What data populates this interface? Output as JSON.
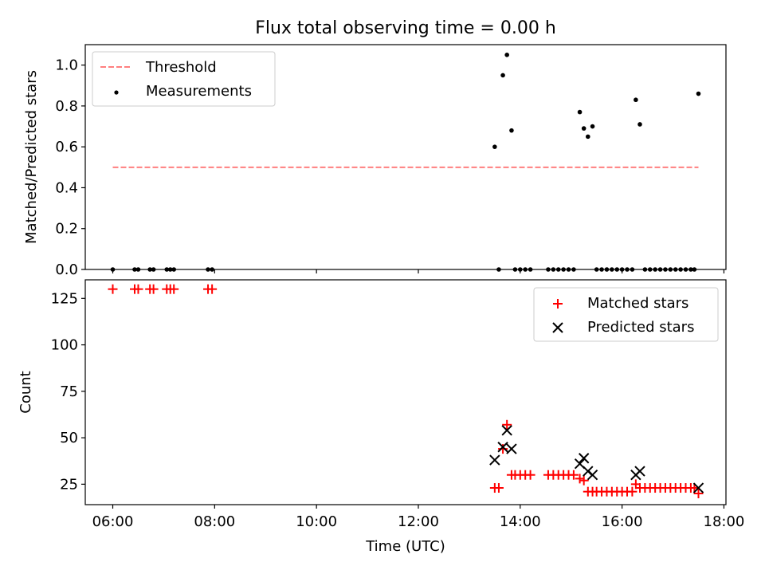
{
  "chart_data": [
    {
      "type": "scatter",
      "title": "Flux total observing time = 0.00 h",
      "xlabel": "",
      "ylabel": "Matched/Predicted stars",
      "xlim": [
        5.46,
        18.04
      ],
      "ylim": [
        0,
        1.1
      ],
      "x_ticks": [
        6,
        8,
        10,
        12,
        14,
        16,
        18
      ],
      "y_ticks": [
        {
          "value": 0.0,
          "label": "0.0"
        },
        {
          "value": 0.2,
          "label": "0.2"
        },
        {
          "value": 0.4,
          "label": "0.4"
        },
        {
          "value": 0.6,
          "label": "0.6"
        },
        {
          "value": 0.8,
          "label": "0.8"
        },
        {
          "value": 1.0,
          "label": "1.0"
        }
      ],
      "legend_position": "upper-left",
      "series": [
        {
          "name": "Threshold",
          "kind": "line",
          "style": "dashed",
          "color": "#ff7f7f",
          "x": [
            6.0,
            17.5
          ],
          "y": [
            0.5,
            0.5
          ]
        },
        {
          "name": "Measurements",
          "kind": "scatter",
          "marker": "dot",
          "color": "#000000",
          "points": [
            [
              6.0,
              0
            ],
            [
              6.43,
              0
            ],
            [
              6.5,
              0
            ],
            [
              6.73,
              0
            ],
            [
              6.8,
              0
            ],
            [
              7.06,
              0
            ],
            [
              7.13,
              0
            ],
            [
              7.2,
              0
            ],
            [
              7.87,
              0
            ],
            [
              7.95,
              0
            ],
            [
              13.5,
              0.6
            ],
            [
              13.58,
              0
            ],
            [
              13.66,
              0.95
            ],
            [
              13.74,
              1.05
            ],
            [
              13.83,
              0.68
            ],
            [
              13.9,
              0
            ],
            [
              14.0,
              0
            ],
            [
              14.1,
              0
            ],
            [
              14.2,
              0
            ],
            [
              14.55,
              0
            ],
            [
              14.65,
              0
            ],
            [
              14.75,
              0
            ],
            [
              14.85,
              0
            ],
            [
              14.95,
              0
            ],
            [
              15.05,
              0
            ],
            [
              15.17,
              0.77
            ],
            [
              15.25,
              0.69
            ],
            [
              15.33,
              0.65
            ],
            [
              15.42,
              0.7
            ],
            [
              15.5,
              0
            ],
            [
              15.6,
              0
            ],
            [
              15.7,
              0
            ],
            [
              15.8,
              0
            ],
            [
              15.9,
              0
            ],
            [
              16.0,
              0
            ],
            [
              16.1,
              0
            ],
            [
              16.2,
              0
            ],
            [
              16.27,
              0.83
            ],
            [
              16.35,
              0.71
            ],
            [
              16.45,
              0
            ],
            [
              16.55,
              0
            ],
            [
              16.65,
              0
            ],
            [
              16.75,
              0
            ],
            [
              16.85,
              0
            ],
            [
              16.95,
              0
            ],
            [
              17.05,
              0
            ],
            [
              17.15,
              0
            ],
            [
              17.25,
              0
            ],
            [
              17.35,
              0
            ],
            [
              17.42,
              0
            ],
            [
              17.5,
              0.86
            ]
          ]
        }
      ]
    },
    {
      "type": "scatter",
      "title": "",
      "xlabel": "Time (UTC)",
      "ylabel": "Count",
      "xlim": [
        5.46,
        18.04
      ],
      "ylim": [
        14,
        135
      ],
      "x_ticks": [
        {
          "value": 6,
          "label": "06:00"
        },
        {
          "value": 8,
          "label": "08:00"
        },
        {
          "value": 10,
          "label": "10:00"
        },
        {
          "value": 12,
          "label": "12:00"
        },
        {
          "value": 14,
          "label": "14:00"
        },
        {
          "value": 16,
          "label": "16:00"
        },
        {
          "value": 18,
          "label": "18:00"
        }
      ],
      "y_ticks": [
        {
          "value": 25,
          "label": "25"
        },
        {
          "value": 50,
          "label": "50"
        },
        {
          "value": 75,
          "label": "75"
        },
        {
          "value": 100,
          "label": "100"
        },
        {
          "value": 125,
          "label": "125"
        }
      ],
      "legend_position": "upper-right",
      "series": [
        {
          "name": "Matched stars",
          "kind": "scatter",
          "marker": "plus",
          "color": "#ff0000",
          "points": [
            [
              6.0,
              130
            ],
            [
              6.43,
              130
            ],
            [
              6.5,
              130
            ],
            [
              6.73,
              130
            ],
            [
              6.8,
              130
            ],
            [
              7.06,
              130
            ],
            [
              7.13,
              130
            ],
            [
              7.2,
              130
            ],
            [
              7.87,
              130
            ],
            [
              7.95,
              130
            ],
            [
              13.5,
              23
            ],
            [
              13.58,
              23
            ],
            [
              13.66,
              44
            ],
            [
              13.74,
              57
            ],
            [
              13.83,
              30
            ],
            [
              13.9,
              30
            ],
            [
              14.0,
              30
            ],
            [
              14.1,
              30
            ],
            [
              14.2,
              30
            ],
            [
              14.55,
              30
            ],
            [
              14.65,
              30
            ],
            [
              14.75,
              30
            ],
            [
              14.85,
              30
            ],
            [
              14.95,
              30
            ],
            [
              15.05,
              30
            ],
            [
              15.17,
              28
            ],
            [
              15.25,
              27
            ],
            [
              15.33,
              21
            ],
            [
              15.42,
              21
            ],
            [
              15.5,
              21
            ],
            [
              15.6,
              21
            ],
            [
              15.7,
              21
            ],
            [
              15.8,
              21
            ],
            [
              15.9,
              21
            ],
            [
              16.0,
              21
            ],
            [
              16.1,
              21
            ],
            [
              16.2,
              21
            ],
            [
              16.27,
              25
            ],
            [
              16.35,
              23
            ],
            [
              16.45,
              23
            ],
            [
              16.55,
              23
            ],
            [
              16.65,
              23
            ],
            [
              16.75,
              23
            ],
            [
              16.85,
              23
            ],
            [
              16.95,
              23
            ],
            [
              17.05,
              23
            ],
            [
              17.15,
              23
            ],
            [
              17.25,
              23
            ],
            [
              17.35,
              23
            ],
            [
              17.42,
              23
            ],
            [
              17.5,
              20
            ]
          ]
        },
        {
          "name": "Predicted stars",
          "kind": "scatter",
          "marker": "x",
          "color": "#000000",
          "points": [
            [
              13.5,
              38
            ],
            [
              13.66,
              45
            ],
            [
              13.74,
              54
            ],
            [
              13.83,
              44
            ],
            [
              15.17,
              36
            ],
            [
              15.25,
              39
            ],
            [
              15.33,
              32
            ],
            [
              15.42,
              30
            ],
            [
              16.27,
              30
            ],
            [
              16.35,
              32
            ],
            [
              17.5,
              23
            ]
          ]
        }
      ]
    }
  ]
}
